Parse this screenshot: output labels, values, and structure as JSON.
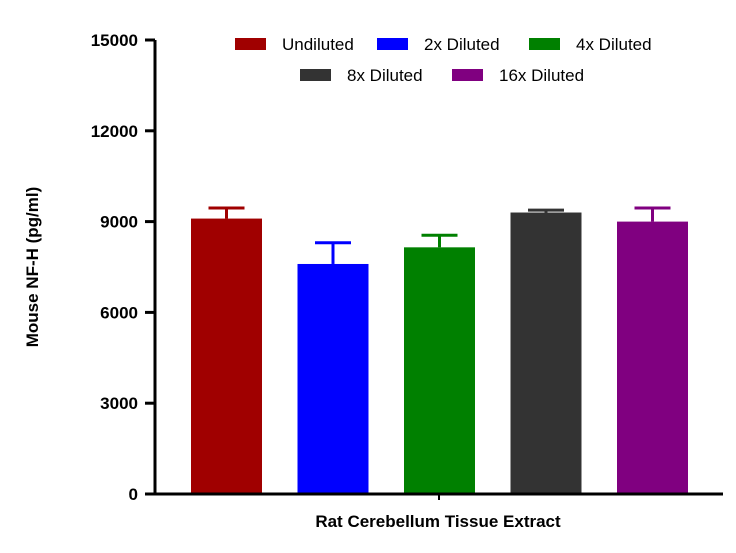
{
  "chart_data": {
    "type": "bar",
    "title": "",
    "xlabel": "Rat Cerebellum Tissue Extract",
    "ylabel": "Mouse NF-H (pg/ml)",
    "ylim": [
      0,
      15000
    ],
    "yticks": [
      "0",
      "3000",
      "6000",
      "9000",
      "12000",
      "15000"
    ],
    "grid": false,
    "legend_position": "top",
    "series": [
      {
        "name": "Undiluted",
        "value": 9100,
        "error": 350,
        "color": "#a00000"
      },
      {
        "name": "2x Diluted",
        "value": 7600,
        "error": 700,
        "color": "#0000ff"
      },
      {
        "name": "4x Diluted",
        "value": 8150,
        "error": 400,
        "color": "#008000"
      },
      {
        "name": "8x Diluted",
        "value": 9300,
        "error": 80,
        "color": "#333333"
      },
      {
        "name": "16x Diluted",
        "value": 9000,
        "error": 450,
        "color": "#800080"
      }
    ]
  }
}
